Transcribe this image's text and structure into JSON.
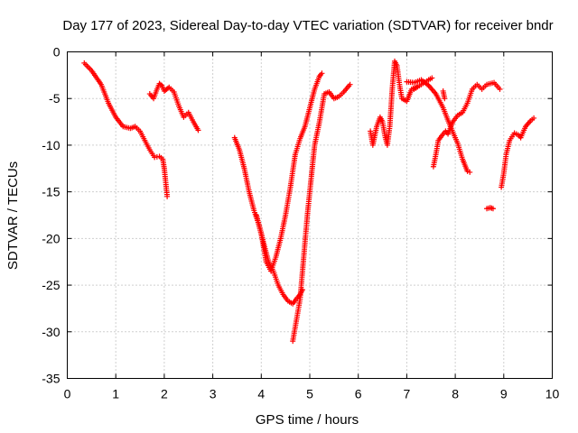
{
  "chart_data": {
    "type": "scatter",
    "title": "Day 177 of 2023, Sidereal Day-to-day VTEC variation (SDTVAR) for receiver bndr",
    "xlabel": "GPS time / hours",
    "ylabel": "SDTVAR / TECUs",
    "xlim": [
      0,
      10
    ],
    "ylim": [
      -35,
      0
    ],
    "xticks": [
      "0",
      "1",
      "2",
      "3",
      "4",
      "5",
      "6",
      "7",
      "8",
      "9",
      "10"
    ],
    "yticks": [
      "0",
      "-5",
      "-10",
      "-15",
      "-20",
      "-25",
      "-30",
      "-35"
    ],
    "grid": true,
    "marker": "plus",
    "color": "#ff0000",
    "series": [
      {
        "name": "seg1",
        "points": [
          [
            0.35,
            -1.2
          ],
          [
            0.5,
            -2.0
          ],
          [
            0.7,
            -3.5
          ],
          [
            0.85,
            -5.5
          ],
          [
            1.0,
            -7.0
          ],
          [
            1.15,
            -8.0
          ],
          [
            1.3,
            -8.2
          ],
          [
            1.4,
            -8.0
          ],
          [
            1.5,
            -8.5
          ],
          [
            1.6,
            -9.5
          ],
          [
            1.7,
            -10.5
          ],
          [
            1.8,
            -11.3
          ],
          [
            1.9,
            -11.2
          ],
          [
            1.97,
            -11.5
          ],
          [
            2.0,
            -12.5
          ],
          [
            2.03,
            -14.0
          ],
          [
            2.06,
            -15.5
          ]
        ]
      },
      {
        "name": "seg2",
        "points": [
          [
            1.7,
            -4.5
          ],
          [
            1.78,
            -5.0
          ],
          [
            1.85,
            -4.0
          ],
          [
            1.9,
            -3.4
          ],
          [
            1.95,
            -3.6
          ],
          [
            2.0,
            -4.2
          ],
          [
            2.05,
            -4.0
          ],
          [
            2.1,
            -3.8
          ],
          [
            2.2,
            -4.3
          ],
          [
            2.3,
            -5.8
          ],
          [
            2.4,
            -7.0
          ],
          [
            2.5,
            -6.5
          ],
          [
            2.6,
            -7.5
          ],
          [
            2.7,
            -8.4
          ]
        ]
      },
      {
        "name": "seg3",
        "points": [
          [
            3.45,
            -9.2
          ],
          [
            3.55,
            -10.5
          ],
          [
            3.65,
            -12.5
          ],
          [
            3.75,
            -15.0
          ],
          [
            3.85,
            -17.0
          ],
          [
            3.95,
            -18.5
          ],
          [
            4.05,
            -20.5
          ],
          [
            4.15,
            -22.5
          ],
          [
            4.25,
            -23.5
          ],
          [
            4.35,
            -25.0
          ],
          [
            4.45,
            -26.0
          ],
          [
            4.55,
            -26.7
          ],
          [
            4.65,
            -27.0
          ],
          [
            4.72,
            -26.5
          ],
          [
            4.8,
            -26.0
          ],
          [
            4.85,
            -25.5
          ]
        ]
      },
      {
        "name": "seg4",
        "points": [
          [
            3.9,
            -17.5
          ],
          [
            4.0,
            -19.5
          ],
          [
            4.1,
            -22.5
          ],
          [
            4.2,
            -23.5
          ],
          [
            4.3,
            -22.0
          ],
          [
            4.4,
            -20.0
          ],
          [
            4.5,
            -17.5
          ],
          [
            4.6,
            -14.5
          ],
          [
            4.7,
            -11.0
          ],
          [
            4.8,
            -9.3
          ],
          [
            4.9,
            -8.0
          ],
          [
            5.0,
            -6.0
          ],
          [
            5.1,
            -4.0
          ],
          [
            5.2,
            -2.6
          ],
          [
            5.25,
            -2.3
          ]
        ]
      },
      {
        "name": "seg5",
        "points": [
          [
            4.65,
            -31.0
          ],
          [
            4.7,
            -29.5
          ],
          [
            4.75,
            -28.0
          ],
          [
            4.8,
            -26.5
          ],
          [
            4.85,
            -23.5
          ],
          [
            4.9,
            -20.5
          ],
          [
            4.95,
            -17.5
          ],
          [
            5.0,
            -15.0
          ],
          [
            5.1,
            -10.0
          ],
          [
            5.2,
            -7.5
          ],
          [
            5.3,
            -4.5
          ],
          [
            5.4,
            -4.3
          ],
          [
            5.5,
            -5.0
          ],
          [
            5.6,
            -4.8
          ],
          [
            5.7,
            -4.3
          ],
          [
            5.83,
            -3.5
          ]
        ]
      },
      {
        "name": "seg6",
        "points": [
          [
            6.25,
            -8.5
          ],
          [
            6.3,
            -10.0
          ],
          [
            6.38,
            -8.0
          ],
          [
            6.45,
            -7.0
          ],
          [
            6.5,
            -7.5
          ],
          [
            6.55,
            -9.0
          ],
          [
            6.6,
            -10.0
          ],
          [
            6.65,
            -8.0
          ],
          [
            6.7,
            -4.0
          ],
          [
            6.75,
            -1.0
          ],
          [
            6.8,
            -1.5
          ],
          [
            6.85,
            -3.5
          ],
          [
            6.9,
            -5.0
          ],
          [
            7.0,
            -5.3
          ],
          [
            7.1,
            -4.0
          ],
          [
            7.2,
            -3.8
          ]
        ]
      },
      {
        "name": "seg7",
        "points": [
          [
            7.0,
            -3.2
          ],
          [
            7.15,
            -3.3
          ],
          [
            7.3,
            -3.0
          ],
          [
            7.45,
            -3.6
          ],
          [
            7.6,
            -4.5
          ],
          [
            7.75,
            -6.0
          ],
          [
            7.9,
            -8.0
          ],
          [
            8.05,
            -9.8
          ],
          [
            8.15,
            -11.5
          ],
          [
            8.25,
            -12.8
          ],
          [
            8.3,
            -12.9
          ]
        ]
      },
      {
        "name": "seg8",
        "points": [
          [
            7.15,
            -4.0
          ],
          [
            7.3,
            -3.5
          ],
          [
            7.45,
            -3.0
          ],
          [
            7.52,
            -2.8
          ]
        ]
      },
      {
        "name": "seg9",
        "points": [
          [
            7.55,
            -12.3
          ],
          [
            7.6,
            -11.0
          ],
          [
            7.65,
            -9.5
          ],
          [
            7.72,
            -9.0
          ],
          [
            7.8,
            -8.5
          ],
          [
            7.85,
            -8.8
          ],
          [
            7.95,
            -7.5
          ],
          [
            8.05,
            -6.8
          ],
          [
            8.15,
            -6.5
          ],
          [
            8.25,
            -5.5
          ],
          [
            8.35,
            -4.0
          ],
          [
            8.45,
            -3.5
          ],
          [
            8.55,
            -4.0
          ],
          [
            8.65,
            -3.5
          ],
          [
            8.8,
            -3.3
          ],
          [
            8.92,
            -4.0
          ]
        ]
      },
      {
        "name": "seg10",
        "points": [
          [
            7.75,
            -4.2
          ],
          [
            7.78,
            -5.0
          ]
        ]
      },
      {
        "name": "seg11",
        "points": [
          [
            8.65,
            -16.8
          ],
          [
            8.72,
            -16.7
          ],
          [
            8.78,
            -16.8
          ]
        ]
      },
      {
        "name": "seg12",
        "points": [
          [
            8.95,
            -14.5
          ],
          [
            9.0,
            -13.0
          ],
          [
            9.05,
            -11.0
          ],
          [
            9.12,
            -9.5
          ],
          [
            9.22,
            -8.7
          ],
          [
            9.3,
            -8.9
          ],
          [
            9.35,
            -9.2
          ],
          [
            9.45,
            -8.0
          ],
          [
            9.55,
            -7.4
          ],
          [
            9.62,
            -7.1
          ]
        ]
      }
    ]
  }
}
